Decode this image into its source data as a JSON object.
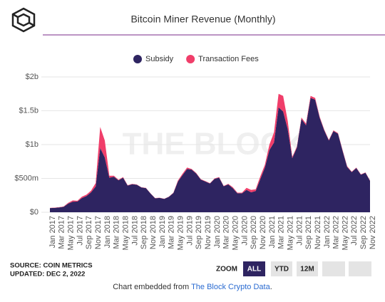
{
  "header": {
    "title": "Bitcoin Miner Revenue (Monthly)"
  },
  "chart_data": {
    "type": "stacked_area",
    "watermark": "THE BLOCK",
    "categories": [
      "Jan 2017",
      null,
      "Mar 2017",
      null,
      "May 2017",
      null,
      "Jul 2017",
      null,
      "Sep 2017",
      null,
      "Nov 2017",
      null,
      "Jan 2018",
      null,
      "Mar 2018",
      null,
      "May 2018",
      null,
      "Jul 2018",
      null,
      "Sep 2018",
      null,
      "Nov 2018",
      null,
      "Jan 2019",
      null,
      "Mar 2019",
      null,
      "May 2019",
      null,
      "Jul 2019",
      null,
      "Sep 2019",
      null,
      "Nov 2019",
      null,
      "Jan 2020",
      null,
      "Mar 2020",
      null,
      "May 2020",
      null,
      "Jul 2020",
      null,
      "Sep 2020",
      null,
      "Nov 2020",
      null,
      "Jan 2021",
      null,
      "Mar 2021",
      null,
      "May 2021",
      null,
      "Jul 2021",
      null,
      "Sep 2021",
      null,
      "Nov 2021",
      null,
      "Jan 2022",
      null,
      "Mar 2022",
      null,
      "May 2022",
      null,
      "Jul 2022",
      null,
      "Sep 2022",
      null,
      "Nov 2022"
    ],
    "series": [
      {
        "name": "Subsidy",
        "color": "#2e2461",
        "values": [
          62,
          65,
          71,
          80,
          128,
          157,
          158,
          210,
          240,
          295,
          380,
          950,
          810,
          510,
          525,
          472,
          510,
          395,
          415,
          406,
          367,
          357,
          277,
          207,
          212,
          197,
          227,
          284,
          455,
          550,
          640,
          630,
          572,
          483,
          454,
          425,
          494,
          512,
          384,
          412,
          355,
          280,
          280,
          330,
          295,
          315,
          490,
          660,
          920,
          1030,
          1550,
          1490,
          1230,
          800,
          955,
          1380,
          1285,
          1690,
          1665,
          1395,
          1208,
          1060,
          1200,
          1160,
          908,
          670,
          594,
          654,
          555,
          584,
          465
        ]
      },
      {
        "name": "Transaction Fees",
        "color": "#f03e6a",
        "values": [
          3,
          3,
          4,
          5,
          12,
          18,
          12,
          20,
          20,
          25,
          50,
          310,
          250,
          30,
          15,
          8,
          10,
          5,
          5,
          4,
          3,
          3,
          3,
          3,
          3,
          3,
          3,
          6,
          15,
          20,
          20,
          10,
          8,
          7,
          6,
          5,
          6,
          8,
          6,
          8,
          15,
          10,
          10,
          30,
          35,
          25,
          40,
          40,
          80,
          150,
          200,
          230,
          120,
          20,
          15,
          20,
          25,
          30,
          25,
          15,
          12,
          10,
          10,
          10,
          12,
          10,
          6,
          6,
          5,
          6,
          5
        ]
      }
    ],
    "ylim": [
      0,
      2000
    ],
    "yticks": [
      {
        "value": 0,
        "label": "$0"
      },
      {
        "value": 500,
        "label": "$500m"
      },
      {
        "value": 1000,
        "label": "$1b"
      },
      {
        "value": 1500,
        "label": "$1.5b"
      },
      {
        "value": 2000,
        "label": "$2b"
      }
    ],
    "grid": true
  },
  "footer": {
    "source": "SOURCE: COIN METRICS",
    "updated": "UPDATED: DEC 2, 2022",
    "zoom": "ZOOM",
    "buttons": [
      "ALL",
      "YTD",
      "12M"
    ],
    "embed_prefix": "Chart embedded from",
    "embed_link": "The Block Crypto Data",
    "embed_suffix": "."
  }
}
